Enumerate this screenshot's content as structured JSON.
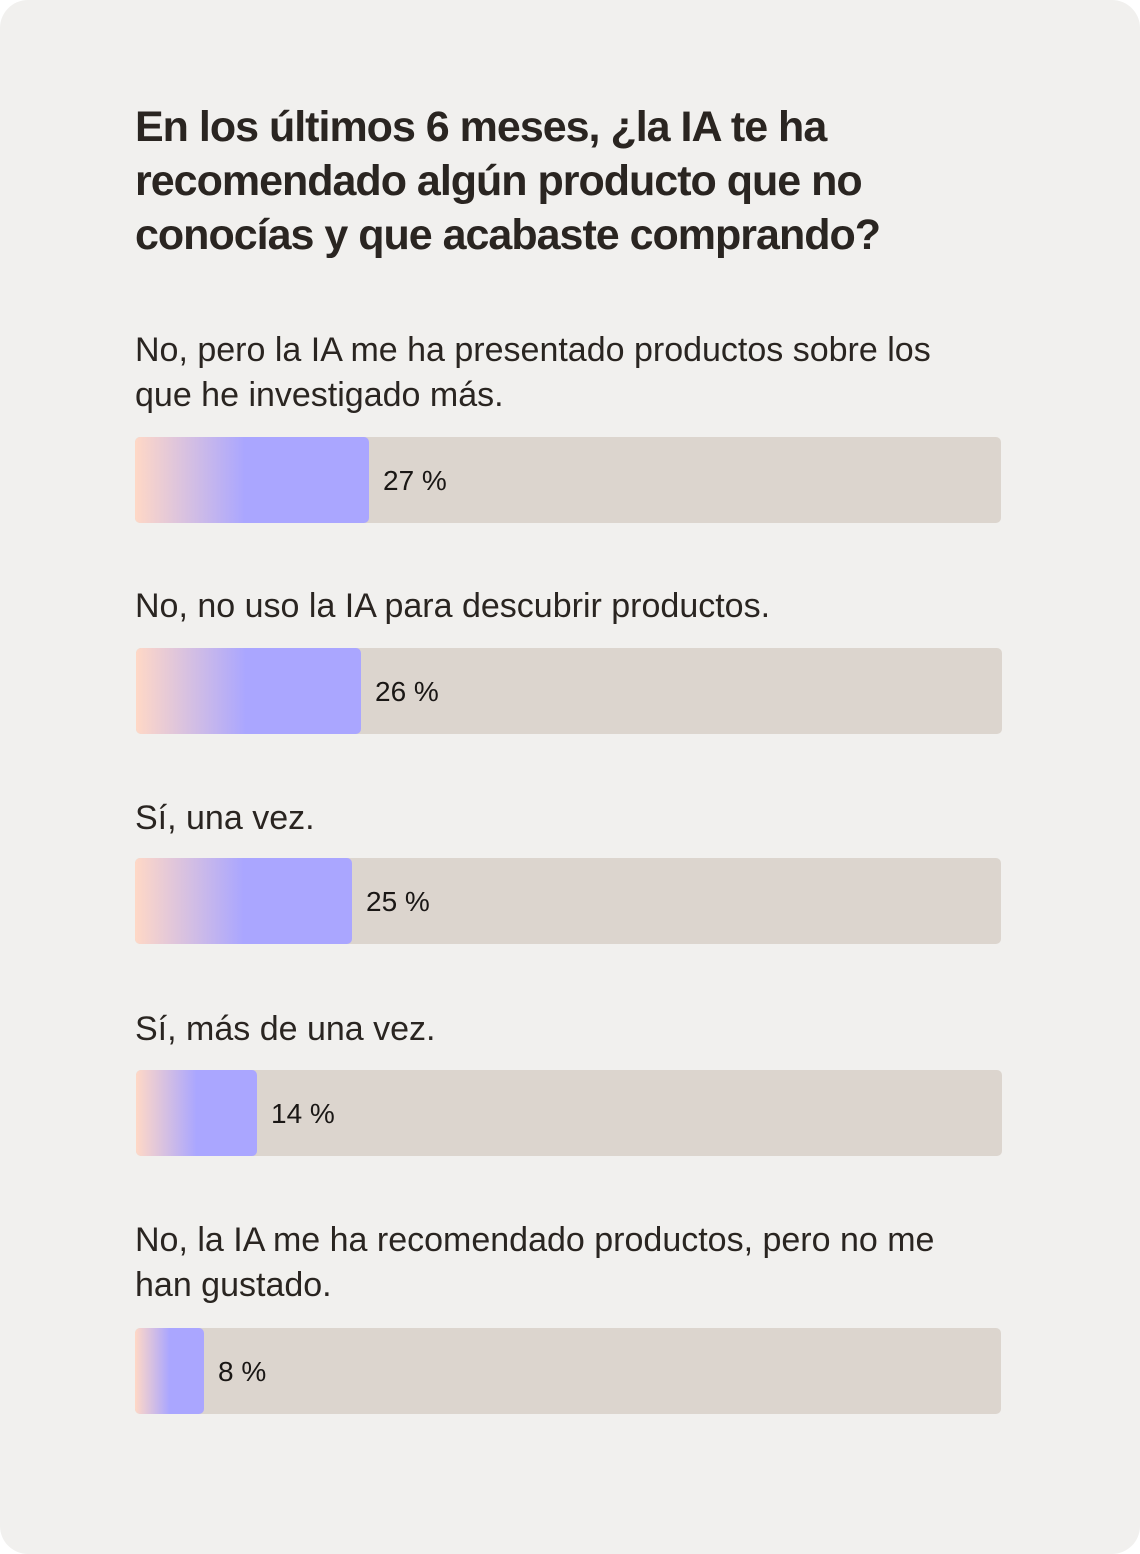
{
  "card": {
    "title": "En los últimos 6 meses, ¿la IA te ha recomendado algún producto que no conocías y que acabaste comprando?"
  },
  "colors": {
    "background": "#f1f0ee",
    "track": "#dcd5ce",
    "gradient_start": "#ffd8c6",
    "gradient_end": "#aaa6ff",
    "text": "#2a2521"
  },
  "chart_data": {
    "type": "bar",
    "orientation": "horizontal",
    "title": "En los últimos 6 meses, ¿la IA te ha recomendado algún producto que no conocías y que acabaste comprando?",
    "xlim": [
      0,
      100
    ],
    "grid": false,
    "categories": [
      "No, pero la IA me ha presentado productos sobre los que he investigado más.",
      "No, no uso la IA para descubrir productos.",
      "Sí, una vez.",
      "Sí, más de una vez.",
      "No, la IA me ha recomendado productos, pero no me han gustado."
    ],
    "values": [
      27,
      26,
      25,
      14,
      8
    ],
    "value_labels": [
      "27 %",
      "26 %",
      "25 %",
      "14 %",
      "8 %"
    ]
  }
}
